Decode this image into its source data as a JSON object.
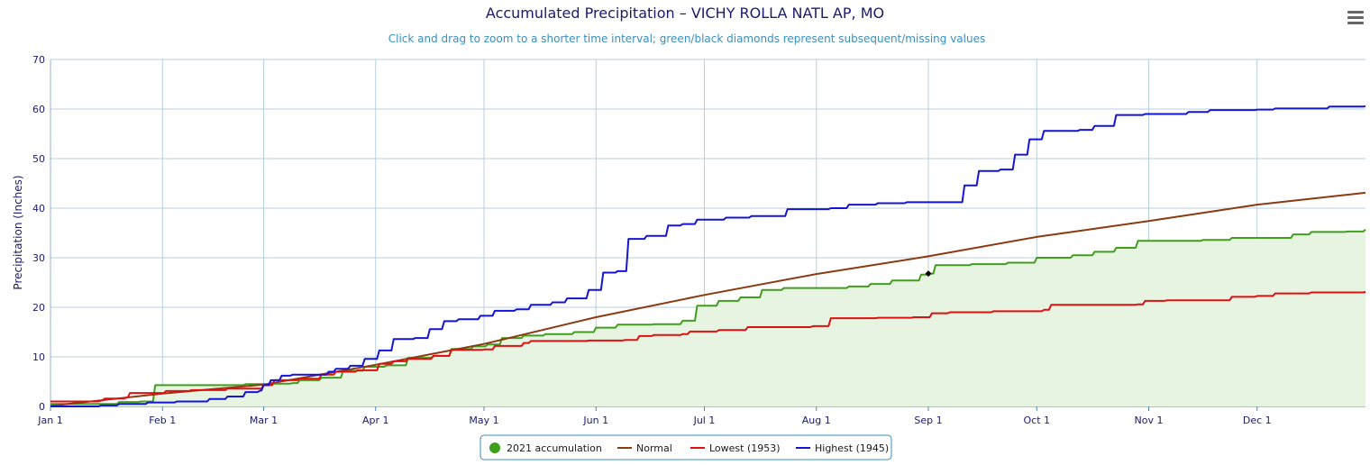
{
  "chart_data": {
    "type": "line",
    "title": "Accumulated Precipitation – VICHY ROLLA NATL AP, MO",
    "subtitle": "Click and drag to zoom to a shorter time interval; green/black diamonds represent subsequent/missing values",
    "ylabel": "Precipitation (Inches)",
    "xlabel": "",
    "ylim": [
      0,
      70
    ],
    "yticks": [
      0,
      10,
      20,
      30,
      40,
      50,
      60,
      70
    ],
    "xlim": [
      1,
      365
    ],
    "x_unit": "day of year",
    "xticks": [
      {
        "day": 1,
        "label": "Jan 1"
      },
      {
        "day": 32,
        "label": "Feb 1"
      },
      {
        "day": 60,
        "label": "Mar 1"
      },
      {
        "day": 91,
        "label": "Apr 1"
      },
      {
        "day": 121,
        "label": "May 1"
      },
      {
        "day": 152,
        "label": "Jun 1"
      },
      {
        "day": 182,
        "label": "Jul 1"
      },
      {
        "day": 213,
        "label": "Aug 1"
      },
      {
        "day": 244,
        "label": "Sep 1"
      },
      {
        "day": 274,
        "label": "Oct 1"
      },
      {
        "day": 305,
        "label": "Nov 1"
      },
      {
        "day": 335,
        "label": "Dec 1"
      }
    ],
    "grid": true,
    "legend_position": "bottom-center",
    "missing_markers": [
      {
        "day": 244,
        "value": 26.8
      }
    ],
    "series": [
      {
        "name": "2021 accumulation",
        "color": "#3f9e1c",
        "fill": "#e8f4e2",
        "step": true,
        "points": [
          [
            1,
            0.5
          ],
          [
            20,
            0.9
          ],
          [
            26,
            1.0
          ],
          [
            30,
            4.3
          ],
          [
            45,
            4.3
          ],
          [
            55,
            4.5
          ],
          [
            60,
            4.5
          ],
          [
            63,
            4.6
          ],
          [
            68,
            4.7
          ],
          [
            70,
            5.3
          ],
          [
            76,
            5.8
          ],
          [
            82,
            7.2
          ],
          [
            88,
            8.0
          ],
          [
            94,
            8.3
          ],
          [
            100,
            9.8
          ],
          [
            107,
            10.2
          ],
          [
            112,
            11.6
          ],
          [
            118,
            12.1
          ],
          [
            122,
            12.5
          ],
          [
            126,
            13.8
          ],
          [
            132,
            14.3
          ],
          [
            138,
            14.6
          ],
          [
            146,
            15.0
          ],
          [
            152,
            15.9
          ],
          [
            158,
            16.5
          ],
          [
            168,
            16.6
          ],
          [
            176,
            17.3
          ],
          [
            180,
            20.3
          ],
          [
            186,
            21.3
          ],
          [
            192,
            22.0
          ],
          [
            198,
            23.5
          ],
          [
            204,
            23.9
          ],
          [
            216,
            23.9
          ],
          [
            222,
            24.2
          ],
          [
            228,
            24.7
          ],
          [
            234,
            25.4
          ],
          [
            242,
            26.6
          ],
          [
            244,
            26.8
          ],
          [
            246,
            28.5
          ],
          [
            256,
            28.7
          ],
          [
            266,
            29.0
          ],
          [
            274,
            30.0
          ],
          [
            284,
            30.5
          ],
          [
            290,
            31.2
          ],
          [
            296,
            32.0
          ],
          [
            302,
            33.4
          ],
          [
            314,
            33.4
          ],
          [
            320,
            33.6
          ],
          [
            328,
            34.0
          ],
          [
            340,
            34.0
          ],
          [
            345,
            34.7
          ],
          [
            350,
            35.2
          ],
          [
            360,
            35.3
          ],
          [
            365,
            35.7
          ]
        ]
      },
      {
        "name": "Normal",
        "color": "#8b3a12",
        "fill": "",
        "step": false,
        "points": [
          [
            1,
            0.1
          ],
          [
            32,
            2.6
          ],
          [
            60,
            4.4
          ],
          [
            91,
            8.4
          ],
          [
            121,
            12.6
          ],
          [
            152,
            18.0
          ],
          [
            182,
            22.5
          ],
          [
            213,
            26.7
          ],
          [
            244,
            30.3
          ],
          [
            274,
            34.2
          ],
          [
            305,
            37.4
          ],
          [
            335,
            40.7
          ],
          [
            365,
            43.1
          ]
        ]
      },
      {
        "name": "Lowest (1953)",
        "color": "#e01010",
        "fill": "",
        "step": true,
        "points": [
          [
            1,
            1.0
          ],
          [
            10,
            1.0
          ],
          [
            15,
            1.2
          ],
          [
            16,
            1.6
          ],
          [
            22,
            1.8
          ],
          [
            23,
            2.7
          ],
          [
            28,
            2.7
          ],
          [
            33,
            3.1
          ],
          [
            40,
            3.3
          ],
          [
            50,
            3.6
          ],
          [
            60,
            4.3
          ],
          [
            63,
            5.3
          ],
          [
            70,
            5.6
          ],
          [
            76,
            6.4
          ],
          [
            80,
            7.0
          ],
          [
            86,
            7.3
          ],
          [
            92,
            8.6
          ],
          [
            96,
            9.1
          ],
          [
            100,
            9.6
          ],
          [
            107,
            10.2
          ],
          [
            112,
            11.4
          ],
          [
            121,
            11.5
          ],
          [
            124,
            12.2
          ],
          [
            132,
            12.8
          ],
          [
            134,
            13.2
          ],
          [
            150,
            13.3
          ],
          [
            160,
            13.4
          ],
          [
            164,
            14.2
          ],
          [
            168,
            14.4
          ],
          [
            176,
            14.6
          ],
          [
            178,
            15.1
          ],
          [
            184,
            15.1
          ],
          [
            186,
            15.4
          ],
          [
            194,
            16.0
          ],
          [
            212,
            16.2
          ],
          [
            217,
            17.8
          ],
          [
            230,
            17.9
          ],
          [
            240,
            18.0
          ],
          [
            245,
            18.8
          ],
          [
            250,
            19.0
          ],
          [
            262,
            19.2
          ],
          [
            276,
            19.5
          ],
          [
            278,
            20.5
          ],
          [
            302,
            20.6
          ],
          [
            304,
            21.3
          ],
          [
            310,
            21.4
          ],
          [
            325,
            21.4
          ],
          [
            328,
            22.1
          ],
          [
            335,
            22.3
          ],
          [
            340,
            22.8
          ],
          [
            350,
            23.0
          ],
          [
            365,
            23.1
          ]
        ]
      },
      {
        "name": "Highest (1945)",
        "color": "#1414d8",
        "fill": "",
        "step": true,
        "points": [
          [
            1,
            0.0
          ],
          [
            15,
            0.2
          ],
          [
            20,
            0.5
          ],
          [
            28,
            0.8
          ],
          [
            36,
            1.0
          ],
          [
            42,
            1.0
          ],
          [
            45,
            1.5
          ],
          [
            50,
            2.0
          ],
          [
            55,
            2.9
          ],
          [
            59,
            3.2
          ],
          [
            60,
            4.3
          ],
          [
            62,
            5.3
          ],
          [
            65,
            6.2
          ],
          [
            68,
            6.4
          ],
          [
            75,
            6.4
          ],
          [
            78,
            7.0
          ],
          [
            80,
            7.6
          ],
          [
            84,
            8.2
          ],
          [
            88,
            9.6
          ],
          [
            92,
            11.3
          ],
          [
            96,
            13.6
          ],
          [
            102,
            13.8
          ],
          [
            106,
            15.6
          ],
          [
            110,
            17.2
          ],
          [
            114,
            17.6
          ],
          [
            120,
            18.3
          ],
          [
            124,
            19.3
          ],
          [
            130,
            19.6
          ],
          [
            134,
            20.5
          ],
          [
            140,
            21.0
          ],
          [
            144,
            21.8
          ],
          [
            150,
            23.5
          ],
          [
            154,
            27.0
          ],
          [
            158,
            27.3
          ],
          [
            161,
            33.8
          ],
          [
            166,
            34.4
          ],
          [
            172,
            36.5
          ],
          [
            176,
            36.8
          ],
          [
            180,
            37.7
          ],
          [
            188,
            38.1
          ],
          [
            195,
            38.4
          ],
          [
            205,
            39.8
          ],
          [
            217,
            40.0
          ],
          [
            222,
            40.7
          ],
          [
            230,
            41.0
          ],
          [
            238,
            41.2
          ],
          [
            249,
            41.2
          ],
          [
            254,
            44.6
          ],
          [
            258,
            47.5
          ],
          [
            264,
            47.8
          ],
          [
            268,
            50.8
          ],
          [
            272,
            53.9
          ],
          [
            276,
            55.6
          ],
          [
            286,
            55.8
          ],
          [
            290,
            56.6
          ],
          [
            296,
            58.8
          ],
          [
            304,
            59.0
          ],
          [
            316,
            59.4
          ],
          [
            322,
            59.8
          ],
          [
            335,
            59.9
          ],
          [
            340,
            60.1
          ],
          [
            355,
            60.5
          ],
          [
            365,
            60.6
          ]
        ]
      }
    ]
  }
}
